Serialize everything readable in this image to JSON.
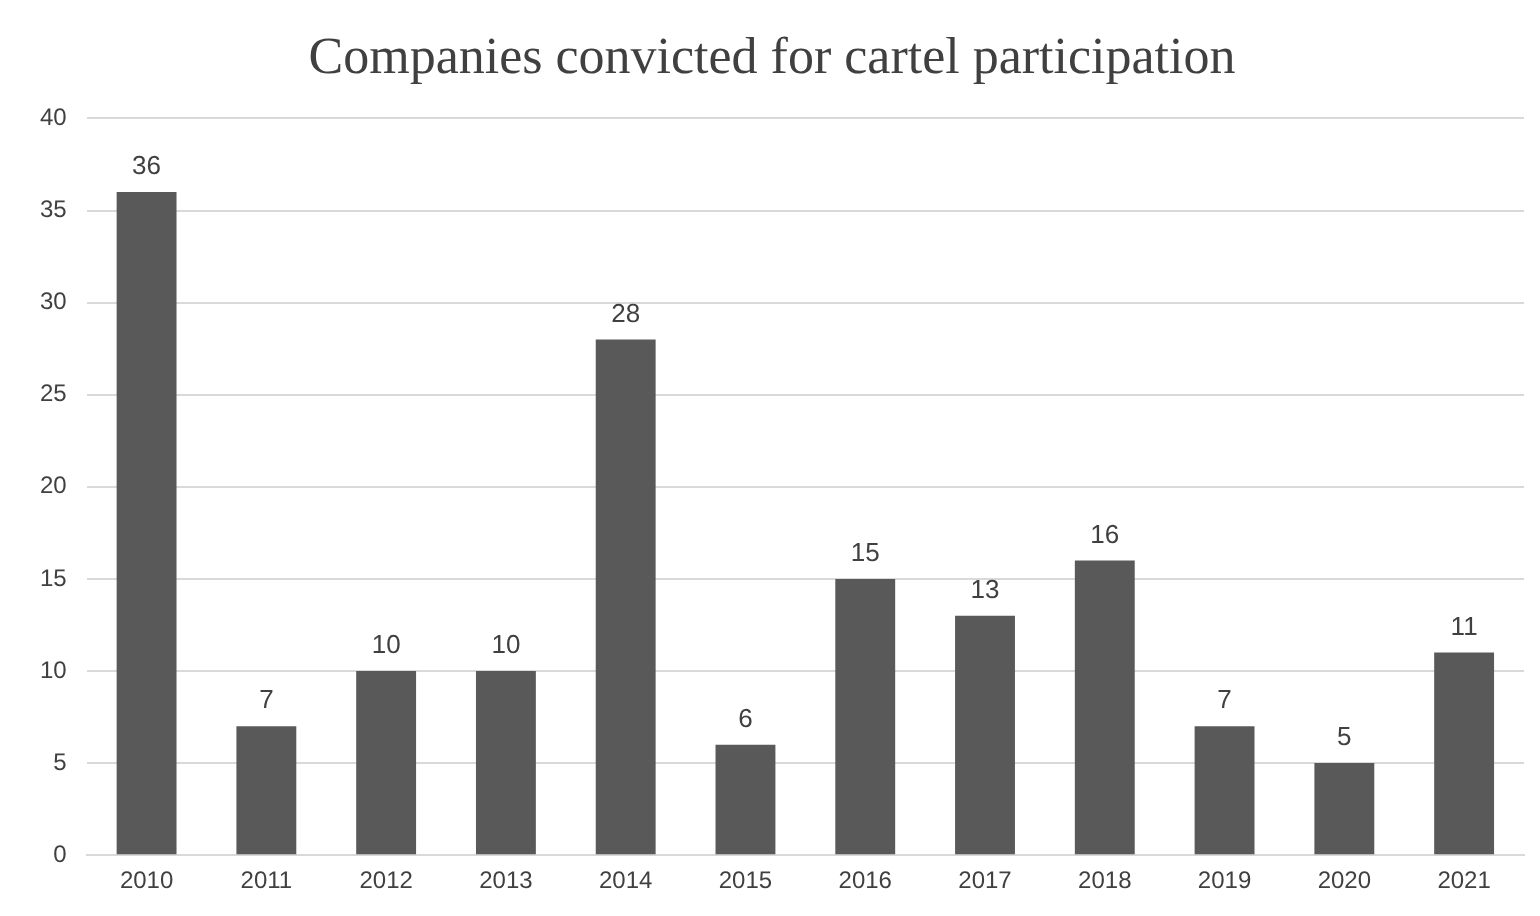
{
  "chart_data": {
    "type": "bar",
    "title": "Companies convicted for cartel participation",
    "categories": [
      "2010",
      "2011",
      "2012",
      "2013",
      "2014",
      "2015",
      "2016",
      "2017",
      "2018",
      "2019",
      "2020",
      "2021"
    ],
    "values": [
      36,
      7,
      10,
      10,
      28,
      6,
      15,
      13,
      16,
      7,
      5,
      11
    ],
    "color": "#595959",
    "ylim": [
      0,
      40
    ],
    "yticks": [
      0,
      5,
      10,
      15,
      20,
      25,
      30,
      35,
      40
    ],
    "grid": "y",
    "data_labels": true,
    "legend": false
  }
}
